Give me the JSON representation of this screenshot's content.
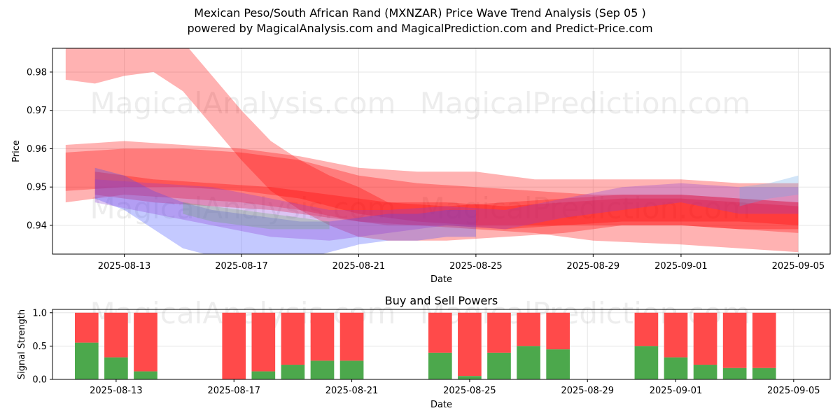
{
  "header": {
    "title": "Mexican Peso/South African Rand (MXNZAR) Price Wave Trend Analysis (Sep 05 )",
    "subtitle": "powered by MagicalAnalysis.com and MagicalPrediction.com and Predict-Price.com"
  },
  "watermarks": [
    "MagicalAnalysis.com",
    "MagicalPrediction.com"
  ],
  "colors": {
    "red_band": "#ff0000",
    "blue_band": "#3b4bff",
    "purple_band": "#8a3bd6",
    "green_band": "#6aa86a",
    "lightblue_band": "#6aa8e8",
    "buy": "#4ca84c",
    "sell": "#ff4a4a"
  },
  "chart_data": [
    {
      "type": "area",
      "title": "",
      "xlabel": "Date",
      "ylabel": "Price",
      "x_ticks": [
        "2025-08-13",
        "2025-08-17",
        "2025-08-21",
        "2025-08-25",
        "2025-08-29",
        "2025-09-01",
        "2025-09-05"
      ],
      "y_ticks": [
        "0.94",
        "0.95",
        "0.96",
        "0.97",
        "0.98"
      ],
      "xlim": [
        "2025-08-10",
        "2025-09-06"
      ],
      "ylim": [
        0.9325,
        0.9862
      ],
      "grid": true,
      "series": [
        {
          "color": "red",
          "x": [
            "2025-08-11",
            "2025-08-12",
            "2025-08-13",
            "2025-08-14",
            "2025-08-15",
            "2025-08-16",
            "2025-08-17",
            "2025-08-18",
            "2025-08-19",
            "2025-08-20",
            "2025-08-21",
            "2025-08-22",
            "2025-08-24",
            "2025-08-26",
            "2025-08-28",
            "2025-08-30",
            "2025-09-01",
            "2025-09-03",
            "2025-09-05"
          ],
          "upper": [
            0.995,
            0.989,
            0.991,
            0.993,
            0.988,
            0.979,
            0.97,
            0.962,
            0.957,
            0.953,
            0.95,
            0.946,
            0.945,
            0.946,
            0.947,
            0.948,
            0.948,
            0.947,
            0.946
          ],
          "lower": [
            0.978,
            0.977,
            0.979,
            0.98,
            0.975,
            0.966,
            0.957,
            0.949,
            0.944,
            0.94,
            0.937,
            0.936,
            0.936,
            0.937,
            0.938,
            0.94,
            0.94,
            0.939,
            0.938
          ]
        },
        {
          "color": "red",
          "x": [
            "2025-08-11",
            "2025-08-13",
            "2025-08-15",
            "2025-08-17",
            "2025-08-19",
            "2025-08-21",
            "2025-08-23",
            "2025-08-25",
            "2025-08-27",
            "2025-08-29",
            "2025-09-01",
            "2025-09-03",
            "2025-09-05"
          ],
          "upper": [
            0.961,
            0.962,
            0.961,
            0.96,
            0.958,
            0.955,
            0.954,
            0.954,
            0.952,
            0.952,
            0.952,
            0.951,
            0.951
          ],
          "lower": [
            0.946,
            0.948,
            0.947,
            0.946,
            0.944,
            0.941,
            0.94,
            0.939,
            0.938,
            0.936,
            0.935,
            0.934,
            0.933
          ]
        },
        {
          "color": "red",
          "x": [
            "2025-08-11",
            "2025-08-13",
            "2025-08-15",
            "2025-08-17",
            "2025-08-19",
            "2025-08-21",
            "2025-08-23",
            "2025-08-25",
            "2025-08-27",
            "2025-08-29",
            "2025-09-01",
            "2025-09-03",
            "2025-09-05"
          ],
          "upper": [
            0.959,
            0.96,
            0.96,
            0.959,
            0.957,
            0.953,
            0.951,
            0.95,
            0.949,
            0.948,
            0.948,
            0.947,
            0.946
          ],
          "lower": [
            0.949,
            0.95,
            0.95,
            0.949,
            0.947,
            0.943,
            0.941,
            0.94,
            0.94,
            0.94,
            0.94,
            0.939,
            0.939
          ]
        },
        {
          "color": "red",
          "x": [
            "2025-08-12",
            "2025-08-14",
            "2025-08-16",
            "2025-08-18",
            "2025-08-20",
            "2025-08-22",
            "2025-08-24",
            "2025-08-26",
            "2025-08-28",
            "2025-08-30",
            "2025-09-01",
            "2025-09-03",
            "2025-09-05"
          ],
          "upper": [
            0.954,
            0.952,
            0.951,
            0.95,
            0.948,
            0.946,
            0.946,
            0.945,
            0.946,
            0.947,
            0.947,
            0.946,
            0.945
          ],
          "lower": [
            0.948,
            0.946,
            0.945,
            0.944,
            0.942,
            0.94,
            0.94,
            0.939,
            0.94,
            0.941,
            0.941,
            0.941,
            0.94
          ]
        },
        {
          "color": "blue",
          "x": [
            "2025-08-12",
            "2025-08-13",
            "2025-08-14",
            "2025-08-15",
            "2025-08-16",
            "2025-08-17",
            "2025-08-18",
            "2025-08-19",
            "2025-08-20",
            "2025-08-21",
            "2025-08-22",
            "2025-08-23",
            "2025-08-24",
            "2025-08-25"
          ],
          "upper": [
            0.955,
            0.953,
            0.949,
            0.946,
            0.944,
            0.943,
            0.942,
            0.941,
            0.941,
            0.942,
            0.943,
            0.943,
            0.944,
            0.944
          ],
          "lower": [
            0.947,
            0.944,
            0.939,
            0.934,
            0.932,
            0.931,
            0.93,
            0.931,
            0.933,
            0.935,
            0.936,
            0.936,
            0.937,
            0.937
          ]
        },
        {
          "color": "purple",
          "x": [
            "2025-08-12",
            "2025-08-14",
            "2025-08-16",
            "2025-08-18",
            "2025-08-20",
            "2025-08-22",
            "2025-08-24",
            "2025-08-26",
            "2025-08-28",
            "2025-08-30",
            "2025-09-01",
            "2025-09-03",
            "2025-09-05"
          ],
          "upper": [
            0.952,
            0.951,
            0.95,
            0.947,
            0.944,
            0.944,
            0.945,
            0.944,
            0.947,
            0.95,
            0.951,
            0.95,
            0.95
          ],
          "lower": [
            0.946,
            0.943,
            0.94,
            0.937,
            0.936,
            0.938,
            0.94,
            0.939,
            0.942,
            0.944,
            0.946,
            0.943,
            0.943
          ]
        },
        {
          "color": "green",
          "x": [
            "2025-08-15",
            "2025-08-16",
            "2025-08-17",
            "2025-08-18",
            "2025-08-19",
            "2025-08-20"
          ],
          "upper": [
            0.946,
            0.945,
            0.944,
            0.943,
            0.942,
            0.941
          ],
          "lower": [
            0.943,
            0.941,
            0.94,
            0.939,
            0.939,
            0.939
          ]
        },
        {
          "color": "lightblue",
          "x": [
            "2025-09-03",
            "2025-09-04",
            "2025-09-05"
          ],
          "upper": [
            0.95,
            0.951,
            0.953
          ],
          "lower": [
            0.945,
            0.947,
            0.948
          ]
        }
      ]
    },
    {
      "type": "bar",
      "title": "Buy and Sell Powers",
      "xlabel": "Date",
      "ylabel": "Signal Strength",
      "x_ticks": [
        "2025-08-13",
        "2025-08-17",
        "2025-08-21",
        "2025-08-25",
        "2025-08-29",
        "2025-09-01",
        "2025-09-05"
      ],
      "y_ticks": [
        "0.0",
        "0.5",
        "1.0"
      ],
      "xlim": [
        "2025-08-10",
        "2025-09-06"
      ],
      "ylim": [
        0,
        1.05
      ],
      "grid": true,
      "categories": [
        "2025-08-12",
        "2025-08-13",
        "2025-08-14",
        "2025-08-17",
        "2025-08-18",
        "2025-08-19",
        "2025-08-20",
        "2025-08-21",
        "2025-08-24",
        "2025-08-25",
        "2025-08-26",
        "2025-08-27",
        "2025-08-28",
        "2025-08-31",
        "2025-09-01",
        "2025-09-02",
        "2025-09-03",
        "2025-09-04"
      ],
      "series": [
        {
          "name": "Buy",
          "values": [
            0.55,
            0.33,
            0.12,
            0.0,
            0.12,
            0.22,
            0.28,
            0.28,
            0.4,
            0.05,
            0.4,
            0.5,
            0.45,
            0.5,
            0.33,
            0.22,
            0.17,
            0.17
          ]
        },
        {
          "name": "Sell",
          "values": [
            0.45,
            0.67,
            0.88,
            1.0,
            0.88,
            0.78,
            0.72,
            0.72,
            0.6,
            0.95,
            0.6,
            0.5,
            0.55,
            0.5,
            0.67,
            0.78,
            0.83,
            0.83
          ]
        }
      ]
    }
  ]
}
